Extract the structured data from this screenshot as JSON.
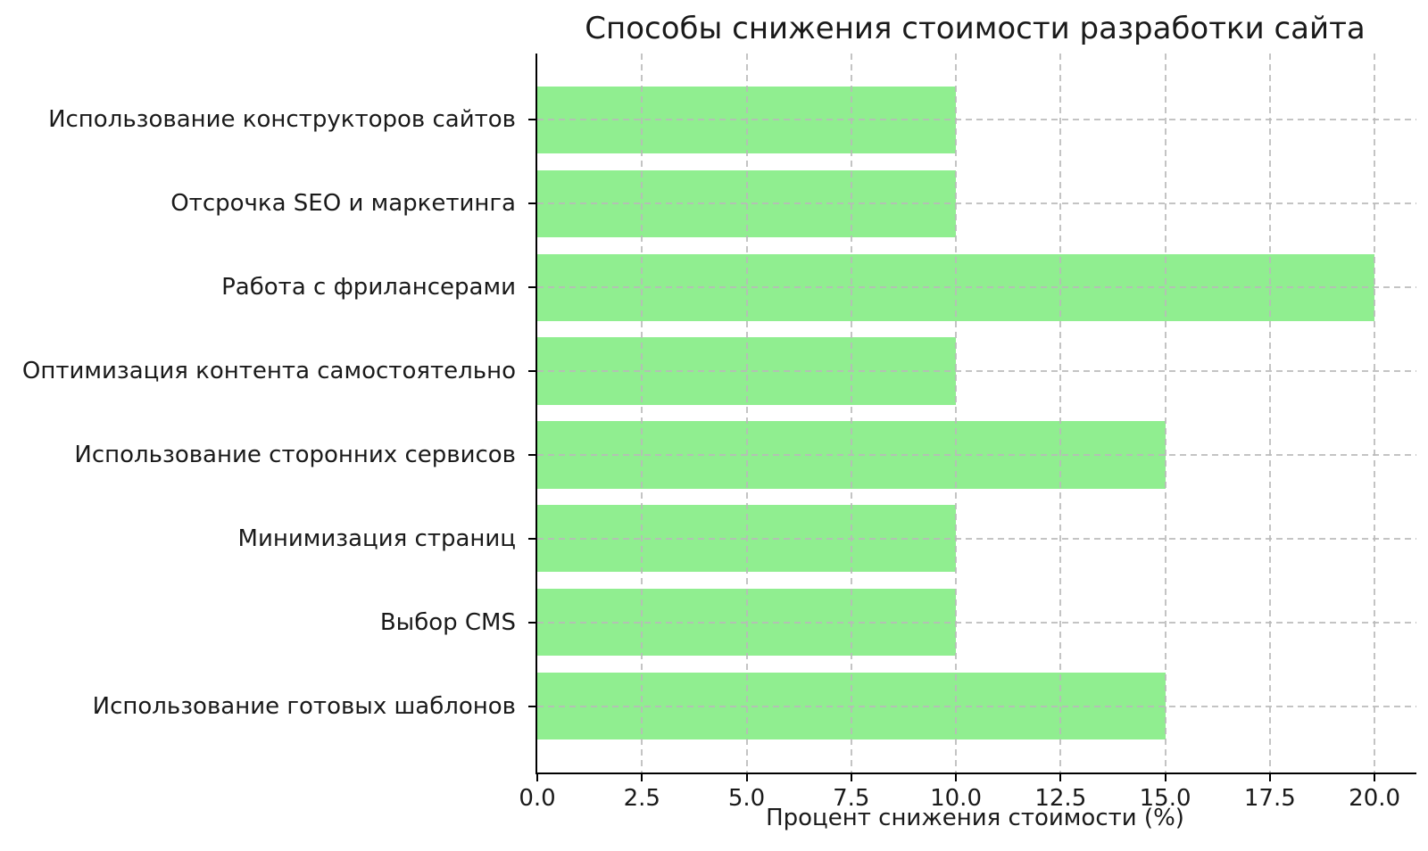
{
  "chart_data": {
    "type": "bar",
    "orientation": "horizontal",
    "title": "Способы снижения стоимости разработки сайта",
    "xlabel": "Процент снижения стоимости (%)",
    "ylabel": "",
    "categories": [
      "Использование конструкторов сайтов",
      "Отсрочка SEO и маркетинга",
      "Работа с фрилансерами",
      "Оптимизация контента самостоятельно",
      "Использование сторонних сервисов",
      "Минимизация страниц",
      "Выбор CMS",
      "Использование готовых шаблонов"
    ],
    "values": [
      10,
      10,
      20,
      10,
      15,
      10,
      10,
      15
    ],
    "xticks": [
      0.0,
      2.5,
      5.0,
      7.5,
      10.0,
      12.5,
      15.0,
      17.5,
      20.0
    ],
    "xtick_labels": [
      "0.0",
      "2.5",
      "5.0",
      "7.5",
      "10.0",
      "12.5",
      "15.0",
      "17.5",
      "20.0"
    ],
    "xlim": [
      0,
      21
    ],
    "bar_height_frac": 0.8,
    "bar_color": "#90EE90",
    "grid": true,
    "grid_style": "dashed",
    "grid_color": "#bbbbbb",
    "spine_color": "#000000",
    "legend": null
  }
}
